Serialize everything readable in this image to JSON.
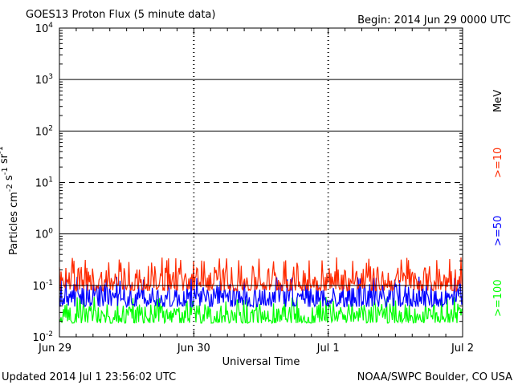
{
  "title": "GOES13 Proton Flux (5 minute data)",
  "begin_label": "Begin: 2014 Jun 29 0000 UTC",
  "footer_left": "Updated 2014 Jul  1 23:56:02 UTC",
  "footer_right": "NOAA/SWPC Boulder, CO USA",
  "chart_data": {
    "type": "line",
    "title": "GOES13 Proton Flux (5 minute data)",
    "xlabel": "Universal Time",
    "ylabel": "Particles cm-2 s-1 sr-1",
    "yscale": "log",
    "ylim": [
      0.01,
      10000
    ],
    "y_ticks": [
      {
        "base": "10",
        "exp": "-2"
      },
      {
        "base": "10",
        "exp": "-1"
      },
      {
        "base": "10",
        "exp": "0"
      },
      {
        "base": "10",
        "exp": "1"
      },
      {
        "base": "10",
        "exp": "2"
      },
      {
        "base": "10",
        "exp": "3"
      },
      {
        "base": "10",
        "exp": "4"
      }
    ],
    "xlim": [
      "2014-06-29 00:00",
      "2014-07-02 00:00"
    ],
    "x_ticks": [
      "Jun 29",
      "Jun 30",
      "Jul 1",
      "Jul 2"
    ],
    "grid": true,
    "reference_lines": [
      {
        "value": 0.1,
        "style": "solid"
      },
      {
        "value": 1,
        "style": "solid"
      },
      {
        "value": 10,
        "style": "dashed"
      },
      {
        "value": 100,
        "style": "solid"
      },
      {
        "value": 1000,
        "style": "solid"
      }
    ],
    "legend_unit": "MeV",
    "series": [
      {
        "name": ">=10",
        "color": "#ff2a00",
        "typical_min": 0.06,
        "typical_max": 0.35
      },
      {
        "name": ">=50",
        "color": "#0000ff",
        "typical_min": 0.03,
        "typical_max": 0.15
      },
      {
        "name": ">=100",
        "color": "#00ff00",
        "typical_min": 0.015,
        "typical_max": 0.06
      }
    ]
  }
}
